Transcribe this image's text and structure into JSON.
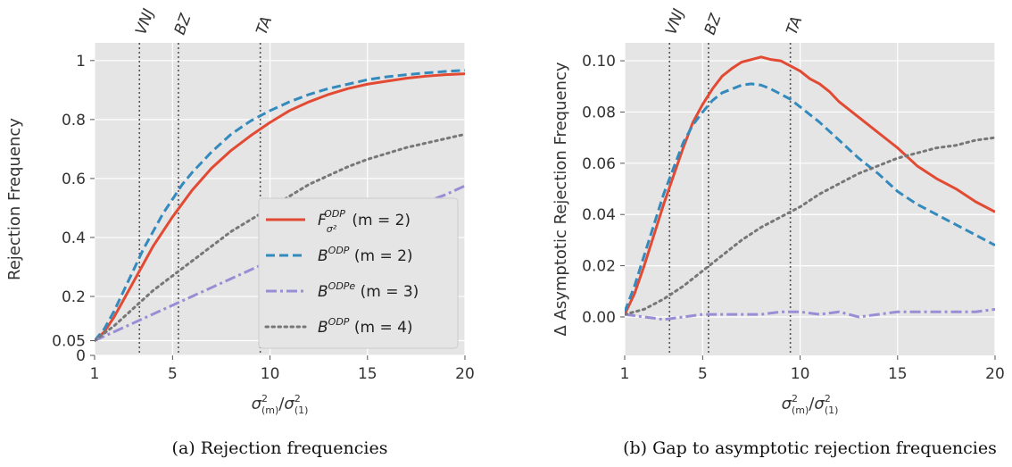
{
  "chart_data": [
    {
      "type": "line",
      "caption": "(a) Rejection frequencies",
      "xlabel": {
        "base": "σ",
        "sup": "2",
        "sub": "(m)",
        "slash": "/",
        "base2": "σ",
        "sup2": "2",
        "sub2": "(1)"
      },
      "ylabel": "Rejection Frequency",
      "xlim": [
        1,
        20
      ],
      "ylim": [
        0,
        1.06
      ],
      "xticks": [
        1,
        5,
        10,
        15,
        20
      ],
      "xtick_labels": [
        "1",
        "5",
        "10",
        "15",
        "20"
      ],
      "yticks": [
        0,
        0.05,
        0.2,
        0.4,
        0.6,
        0.8,
        1
      ],
      "ytick_labels": [
        "0",
        "0.05",
        "0.2",
        "0.4",
        "0.6",
        "0.8",
        "1"
      ],
      "grid": true,
      "legend_position": "bottom-right",
      "vlines": [
        {
          "x": 3.3,
          "label": "VNJ"
        },
        {
          "x": 5.3,
          "label": "BZ"
        },
        {
          "x": 9.5,
          "label": "TA"
        }
      ],
      "series": [
        {
          "name": "F",
          "name_sub": "σ²",
          "name_sup": "ODP",
          "name_suffix": " (m = 2)",
          "color": "#e24a33",
          "style": "solid",
          "x": [
            1,
            1.5,
            2,
            2.5,
            3,
            3.5,
            4,
            4.5,
            5,
            5.5,
            6,
            7,
            8,
            9,
            10,
            11,
            12,
            13,
            14,
            15,
            16,
            17,
            18,
            19,
            20
          ],
          "y": [
            0.05,
            0.08,
            0.13,
            0.19,
            0.25,
            0.31,
            0.37,
            0.42,
            0.47,
            0.515,
            0.56,
            0.635,
            0.695,
            0.745,
            0.79,
            0.83,
            0.86,
            0.885,
            0.905,
            0.92,
            0.93,
            0.94,
            0.947,
            0.952,
            0.955
          ]
        },
        {
          "name": "B",
          "name_sup": "ODP",
          "name_suffix": " (m = 2)",
          "color": "#348abd",
          "style": "dashed",
          "x": [
            1,
            1.5,
            2,
            2.5,
            3,
            3.5,
            4,
            4.5,
            5,
            5.5,
            6,
            7,
            8,
            9,
            10,
            11,
            12,
            13,
            14,
            15,
            16,
            17,
            18,
            19,
            20
          ],
          "y": [
            0.05,
            0.09,
            0.15,
            0.22,
            0.29,
            0.36,
            0.42,
            0.48,
            0.53,
            0.58,
            0.62,
            0.69,
            0.75,
            0.795,
            0.83,
            0.86,
            0.885,
            0.905,
            0.92,
            0.935,
            0.945,
            0.952,
            0.958,
            0.963,
            0.967
          ]
        },
        {
          "name": "B",
          "name_sup": "ODPe",
          "name_suffix": " (m = 3)",
          "color": "#988ed5",
          "style": "dashdot",
          "x": [
            1,
            2,
            3,
            4,
            5,
            6,
            7,
            8,
            9,
            10,
            11,
            12,
            13,
            14,
            15,
            16,
            17,
            18,
            19,
            20
          ],
          "y": [
            0.05,
            0.08,
            0.11,
            0.14,
            0.17,
            0.2,
            0.23,
            0.26,
            0.29,
            0.32,
            0.345,
            0.37,
            0.395,
            0.42,
            0.445,
            0.47,
            0.495,
            0.52,
            0.545,
            0.575
          ]
        },
        {
          "name": "B",
          "name_sup": "ODP",
          "name_suffix": " (m = 4)",
          "color": "#777777",
          "style": "dotted",
          "x": [
            1,
            2,
            3,
            4,
            5,
            6,
            7,
            8,
            9,
            10,
            11,
            12,
            13,
            14,
            15,
            16,
            17,
            18,
            19,
            20
          ],
          "y": [
            0.05,
            0.1,
            0.16,
            0.22,
            0.27,
            0.32,
            0.37,
            0.42,
            0.46,
            0.5,
            0.54,
            0.58,
            0.61,
            0.64,
            0.665,
            0.685,
            0.705,
            0.72,
            0.735,
            0.75
          ]
        }
      ]
    },
    {
      "type": "line",
      "caption": "(b) Gap to asymptotic rejection frequencies",
      "xlabel": {
        "base": "σ",
        "sup": "2",
        "sub": "(m)",
        "slash": "/",
        "base2": "σ",
        "sup2": "2",
        "sub2": "(1)"
      },
      "ylabel": "Δ Asymptotic Rejection Frequency",
      "xlim": [
        1,
        20
      ],
      "ylim": [
        -0.015,
        0.107
      ],
      "xticks": [
        1,
        5,
        10,
        15,
        20
      ],
      "xtick_labels": [
        "1",
        "5",
        "10",
        "15",
        "20"
      ],
      "yticks": [
        0,
        0.02,
        0.04,
        0.06,
        0.08,
        0.1
      ],
      "ytick_labels": [
        "0.00",
        "0.02",
        "0.04",
        "0.06",
        "0.08",
        "0.10"
      ],
      "grid": true,
      "vlines": [
        {
          "x": 3.3,
          "label": "VNJ"
        },
        {
          "x": 5.3,
          "label": "BZ"
        },
        {
          "x": 9.5,
          "label": "TA"
        }
      ],
      "series": [
        {
          "color": "#e24a33",
          "style": "solid",
          "x": [
            1,
            1.5,
            2,
            2.5,
            3,
            3.5,
            4,
            4.5,
            5,
            5.5,
            6,
            6.5,
            7,
            7.5,
            8,
            8.5,
            9,
            9.5,
            10,
            10.5,
            11,
            11.5,
            12,
            13,
            14,
            15,
            16,
            17,
            18,
            19,
            20
          ],
          "y": [
            0.001,
            0.009,
            0.02,
            0.032,
            0.044,
            0.055,
            0.066,
            0.076,
            0.083,
            0.089,
            0.094,
            0.097,
            0.0995,
            0.1005,
            0.1015,
            0.1005,
            0.1,
            0.098,
            0.096,
            0.093,
            0.091,
            0.088,
            0.084,
            0.078,
            0.072,
            0.066,
            0.059,
            0.054,
            0.05,
            0.045,
            0.041
          ]
        },
        {
          "color": "#348abd",
          "style": "dashed",
          "x": [
            1,
            1.5,
            2,
            2.5,
            3,
            3.5,
            4,
            4.5,
            5,
            5.5,
            6,
            6.5,
            7,
            7.5,
            8,
            8.5,
            9,
            9.5,
            10,
            11,
            12,
            13,
            14,
            15,
            16,
            17,
            18,
            19,
            20
          ],
          "y": [
            0.002,
            0.012,
            0.024,
            0.036,
            0.048,
            0.058,
            0.068,
            0.075,
            0.08,
            0.0845,
            0.0875,
            0.089,
            0.0905,
            0.091,
            0.0905,
            0.089,
            0.087,
            0.085,
            0.082,
            0.076,
            0.069,
            0.062,
            0.056,
            0.049,
            0.044,
            0.04,
            0.036,
            0.032,
            0.028
          ]
        },
        {
          "color": "#988ed5",
          "style": "dashdot",
          "x": [
            1,
            2,
            3,
            4,
            5,
            6,
            7,
            8,
            9,
            10,
            11,
            12,
            13,
            14,
            15,
            16,
            17,
            18,
            19,
            20
          ],
          "y": [
            0.001,
            0.0,
            -0.001,
            0.0,
            0.001,
            0.001,
            0.001,
            0.001,
            0.002,
            0.002,
            0.001,
            0.002,
            0.0,
            0.001,
            0.002,
            0.002,
            0.002,
            0.002,
            0.002,
            0.003
          ]
        },
        {
          "color": "#777777",
          "style": "dotted",
          "x": [
            1,
            2,
            3,
            4,
            5,
            6,
            7,
            8,
            9,
            10,
            11,
            12,
            13,
            14,
            15,
            16,
            17,
            18,
            19,
            20
          ],
          "y": [
            0.001,
            0.003,
            0.007,
            0.012,
            0.018,
            0.024,
            0.03,
            0.035,
            0.039,
            0.043,
            0.048,
            0.052,
            0.056,
            0.059,
            0.062,
            0.064,
            0.066,
            0.067,
            0.069,
            0.07
          ]
        }
      ]
    }
  ]
}
